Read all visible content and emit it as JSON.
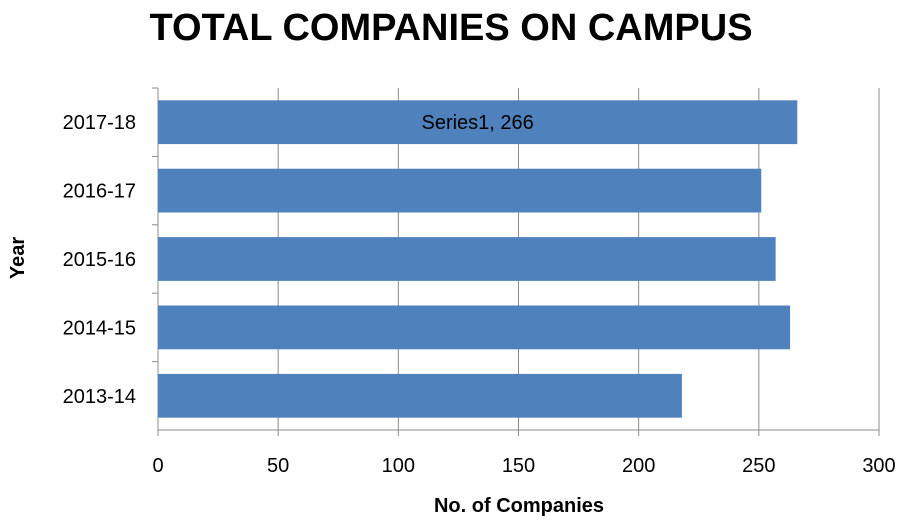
{
  "chart_data": {
    "type": "bar",
    "orientation": "horizontal",
    "title": "TOTAL COMPANIES ON CAMPUS",
    "xlabel": "No. of Companies",
    "ylabel": "Year",
    "categories": [
      "2013-14",
      "2014-15",
      "2015-16",
      "2016-17",
      "2017-18"
    ],
    "series": [
      {
        "values": [
          218,
          263,
          257,
          251,
          266
        ],
        "color": "#4f81bd"
      }
    ],
    "xlim": [
      0,
      300
    ],
    "xticks": [
      "0",
      "50",
      "100",
      "150",
      "200",
      "250",
      "300"
    ],
    "grid": true,
    "legend": "none",
    "annotations": [
      {
        "category": "2017-18",
        "text": "Series1, 266"
      }
    ]
  }
}
